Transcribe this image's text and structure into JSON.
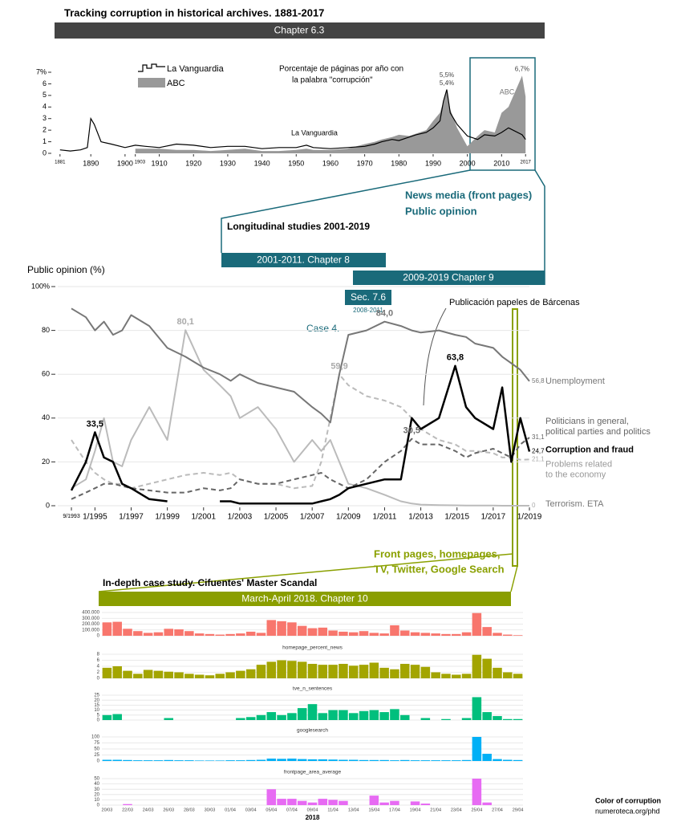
{
  "page": {
    "title": "Tracking corruption in historical archives. 1881-2017",
    "chapter_6_3": "Chapter 6.3",
    "news_media": "News media (front pages)",
    "public_opinion": "Public opinion",
    "longitudinal": "Longitudinal studies 2001-2019",
    "chapter_8": "2001-2011. Chapter 8",
    "chapter_9": "2009-2019 Chapter 9",
    "sec_7_6": "Sec. 7.6",
    "sec_7_6_years": "2008-2011",
    "case_4": "Case 4.",
    "barcenas": "Publicación papeles de Bárcenas",
    "front_pages": [
      "Front pages, homepages,",
      "TV, Twitter, Google Search"
    ],
    "in_depth": "In-depth case study. Cifuentes' Master Scandal",
    "chapter_10": "March-April 2018. Chapter 10",
    "footer": [
      "Color of corruption",
      "numeroteca.org/phd"
    ]
  },
  "chart_data": [
    {
      "type": "line",
      "subtitle": [
        "Porcentaje de páginas por año con",
        "la palabra \"corrupción\""
      ],
      "x": [
        1881,
        1884,
        1887,
        1889,
        1890,
        1891,
        1893,
        1896,
        1900,
        1903,
        1906,
        1910,
        1915,
        1920,
        1925,
        1930,
        1935,
        1940,
        1945,
        1950,
        1953,
        1955,
        1960,
        1965,
        1970,
        1973,
        1975,
        1978,
        1980,
        1983,
        1985,
        1988,
        1990,
        1992,
        1993,
        1994,
        1995,
        1997,
        2000,
        2003,
        2005,
        2008,
        2010,
        2012,
        2016,
        2017
      ],
      "series": [
        {
          "name": "La Vanguardia",
          "color": "#000000",
          "style": "line",
          "values": [
            0.3,
            0.2,
            0.3,
            0.5,
            3.0,
            2.5,
            1.0,
            0.8,
            0.5,
            0.7,
            0.6,
            0.5,
            0.8,
            0.7,
            0.5,
            0.6,
            0.6,
            0.4,
            0.5,
            0.5,
            0.7,
            0.5,
            0.4,
            0.5,
            0.6,
            0.8,
            1.0,
            1.2,
            1.1,
            1.4,
            1.6,
            1.8,
            2.2,
            2.8,
            4.5,
            5.5,
            3.5,
            2.5,
            1.5,
            1.2,
            1.6,
            1.5,
            1.8,
            2.2,
            1.6,
            1.2
          ]
        },
        {
          "name": "ABC",
          "color": "#999999",
          "style": "area",
          "values": [
            null,
            null,
            null,
            null,
            null,
            null,
            null,
            null,
            null,
            0.4,
            0.4,
            0.4,
            0.3,
            0.3,
            0.2,
            0.3,
            0.4,
            0.2,
            0.2,
            0.3,
            0.4,
            0.3,
            0.3,
            0.4,
            0.8,
            1.0,
            1.2,
            1.4,
            1.6,
            1.5,
            1.7,
            2.0,
            2.8,
            3.5,
            4.5,
            5.4,
            3.8,
            2.2,
            0.6,
            1.5,
            2.0,
            1.8,
            3.5,
            4.0,
            6.7,
            4.9
          ]
        }
      ],
      "xlim": [
        1878,
        2020
      ],
      "xticks": [
        1881,
        1890,
        1900,
        1903,
        1910,
        1920,
        1930,
        1940,
        1950,
        1960,
        1970,
        1980,
        1990,
        2000,
        2010,
        2017
      ],
      "ylim": [
        0,
        7
      ],
      "yticks": [
        0,
        1,
        2,
        3,
        4,
        5,
        6,
        {
          "value": 7,
          "label": "7%"
        }
      ],
      "legend": "top-left",
      "annotations": [
        {
          "text": "5,5%",
          "x": 1994,
          "y": 5.5
        },
        {
          "text": "5,4%",
          "x": 1994,
          "y": 5.4
        },
        {
          "text": "6,7%",
          "x": 2016,
          "y": 6.7
        }
      ]
    },
    {
      "type": "line",
      "ylabel": "Public opinion (%)",
      "x": [
        1993.7,
        1994.5,
        1995,
        1995.5,
        1996,
        1996.5,
        1997,
        1998,
        1999,
        2000,
        2001,
        2001.9,
        2002.5,
        2003,
        2004,
        2005,
        2006,
        2007,
        2007.5,
        2008,
        2008.5,
        2009,
        2010,
        2011,
        2011.9,
        2012.5,
        2013,
        2014,
        2014.9,
        2015.5,
        2016,
        2017,
        2017.5,
        2018,
        2018.5,
        2019
      ],
      "series": [
        {
          "name": "Unemployment",
          "color": "#777777",
          "dash": false,
          "values": [
            90,
            86,
            80,
            84,
            78,
            80,
            87,
            82,
            72,
            68,
            63,
            60,
            57,
            60,
            56,
            54,
            52,
            45,
            42,
            38,
            60,
            78,
            80,
            84,
            82,
            80,
            79,
            80,
            78,
            77,
            74,
            72,
            68,
            65,
            62,
            56.8
          ]
        },
        {
          "name": "Politicians in general, political parties and politics",
          "color": "#666666",
          "dash": true,
          "values": [
            3,
            6,
            8,
            10,
            10,
            9,
            8,
            7,
            6,
            6,
            8,
            7,
            8,
            12,
            10,
            10,
            12,
            14,
            15,
            12,
            10,
            8,
            12,
            20,
            25,
            30.5,
            28,
            28,
            25,
            22,
            24,
            26,
            24,
            22,
            28,
            31.1
          ]
        },
        {
          "name": "Corruption and fraud",
          "color": "#000000",
          "dash": false,
          "values": [
            7,
            20,
            33.5,
            22,
            20,
            10,
            8,
            3,
            2,
            null,
            null,
            2,
            2,
            1,
            1,
            1,
            1,
            1,
            2,
            3,
            5,
            8,
            10,
            12,
            12,
            40,
            35,
            40,
            63.8,
            45,
            40,
            35,
            54,
            20,
            40,
            24.7
          ]
        },
        {
          "name": "Problems related to the economy",
          "color": "#bbbbbb",
          "dash": true,
          "values": [
            30,
            20,
            15,
            12,
            10,
            10,
            8,
            10,
            12,
            14,
            15,
            14,
            15,
            12,
            10,
            10,
            8,
            9,
            20,
            40,
            59.9,
            55,
            50,
            48,
            45,
            40,
            35,
            30,
            28,
            25,
            25,
            24,
            22,
            22,
            21,
            21.1
          ]
        },
        {
          "name": "Terrorism. ETA",
          "color": "#bbbbbb",
          "dash": false,
          "values": [
            8,
            12,
            25,
            40,
            20,
            18,
            30,
            45,
            30,
            80.1,
            62,
            55,
            50,
            40,
            45,
            35,
            20,
            30,
            25,
            30,
            20,
            10,
            8,
            5,
            2,
            1,
            0.5,
            0.3,
            0.2,
            0.1,
            0.1,
            0.1,
            0,
            0,
            0,
            0
          ]
        }
      ],
      "xlim": [
        1993.3,
        2019
      ],
      "xticks": [
        {
          "value": 1993.7,
          "label": "9/1993"
        },
        {
          "value": 1995,
          "label": "1/1995"
        },
        {
          "value": 1997,
          "label": "1/1997"
        },
        {
          "value": 1999,
          "label": "1/1999"
        },
        {
          "value": 2001,
          "label": "1/2001"
        },
        {
          "value": 2003,
          "label": "1/2003"
        },
        {
          "value": 2005,
          "label": "1/2005"
        },
        {
          "value": 2007,
          "label": "1/2007"
        },
        {
          "value": 2009,
          "label": "1/2009"
        },
        {
          "value": 2011,
          "label": "1/2011"
        },
        {
          "value": 2013,
          "label": "1/2013"
        },
        {
          "value": 2015,
          "label": "1/2015"
        },
        {
          "value": 2017,
          "label": "1/2017"
        },
        {
          "value": 2019,
          "label": "1/2019"
        }
      ],
      "ylim": [
        0,
        100
      ],
      "yticks": [
        0,
        20,
        40,
        60,
        80,
        {
          "value": 100,
          "label": "100%"
        }
      ],
      "grid": true,
      "annotations": [
        {
          "text": "33,5",
          "x": 1995,
          "y": 33.5
        },
        {
          "text": "80,1",
          "x": 2000,
          "y": 80.1
        },
        {
          "text": "59,9",
          "x": 2008.5,
          "y": 59.9
        },
        {
          "text": "84,0",
          "x": 2011,
          "y": 84
        },
        {
          "text": "30,5",
          "x": 2012.5,
          "y": 30.5
        },
        {
          "text": "63,8",
          "x": 2014.9,
          "y": 63.8
        },
        {
          "text": "56,8",
          "x": 2019,
          "y": 56.8
        },
        {
          "text": "31,1",
          "x": 2019,
          "y": 31.1
        },
        {
          "text": "24,7",
          "x": 2019,
          "y": 24.7
        },
        {
          "text": "21,1",
          "x": 2019,
          "y": 21.1
        },
        {
          "text": "0",
          "x": 2019,
          "y": 0
        }
      ]
    },
    {
      "type": "bar",
      "facets": true,
      "xlabel": "2018",
      "categories": [
        "20/03",
        null,
        "22/03",
        null,
        "24/03",
        null,
        "26/03",
        null,
        "28/03",
        null,
        "30/03",
        null,
        "01/04",
        null,
        "03/04",
        null,
        "05/04",
        null,
        "07/04",
        null,
        "09/04",
        null,
        "11/04",
        null,
        "13/04",
        null,
        "15/04",
        null,
        "17/04",
        null,
        "19/04",
        null,
        "21/04",
        null,
        "23/04",
        null,
        "25/04",
        null,
        "27/04",
        null,
        "29/04"
      ],
      "series": [
        {
          "color": "#f8766d",
          "ylim": [
            0,
            400000
          ],
          "yticks": [
            0,
            {
              "value": 100000,
              "label": "100.000"
            },
            {
              "value": 200000,
              "label": "200.000"
            },
            {
              "value": 300000,
              "label": "300.000"
            },
            {
              "value": 400000,
              "label": "400.000"
            }
          ],
          "values": [
            230000,
            240000,
            120000,
            80000,
            50000,
            60000,
            120000,
            110000,
            80000,
            40000,
            30000,
            20000,
            30000,
            40000,
            70000,
            50000,
            270000,
            250000,
            230000,
            170000,
            130000,
            140000,
            90000,
            70000,
            60000,
            80000,
            50000,
            40000,
            180000,
            90000,
            60000,
            50000,
            40000,
            30000,
            30000,
            60000,
            390000,
            150000,
            50000,
            20000,
            10000
          ]
        },
        {
          "name": "homepage_percent_news",
          "color": "#a3a500",
          "ylim": [
            0,
            8
          ],
          "yticks": [
            0,
            2,
            4,
            6,
            8
          ],
          "values": [
            3.5,
            4,
            2.5,
            1.5,
            2.8,
            2.5,
            2.2,
            2,
            1.5,
            1.2,
            1,
            1.5,
            2,
            2.5,
            3,
            4.5,
            5.5,
            6,
            5.8,
            5.5,
            4.8,
            4.5,
            4.5,
            4.8,
            4.2,
            4.5,
            5.2,
            3.5,
            3,
            4.8,
            4.5,
            3.8,
            2,
            1.5,
            1.2,
            1.5,
            7.8,
            6.5,
            3.5,
            2,
            1.5
          ]
        },
        {
          "name": "tve_n_sentences",
          "color": "#00bf7d",
          "ylim": [
            0,
            25
          ],
          "yticks": [
            0,
            5,
            10,
            15,
            20,
            25
          ],
          "values": [
            5,
            6,
            0,
            0,
            0,
            0,
            2,
            0,
            0,
            0,
            0,
            0,
            0,
            2,
            3,
            5,
            8,
            5,
            7,
            12,
            16,
            7,
            10,
            10,
            7,
            9,
            10,
            8,
            11,
            5,
            0,
            2,
            0,
            1,
            0,
            2,
            23,
            8,
            4,
            1,
            1
          ]
        },
        {
          "name": "googlesearch",
          "color": "#00b0f6",
          "ylim": [
            0,
            100
          ],
          "yticks": [
            0,
            25,
            50,
            75,
            100
          ],
          "values": [
            5,
            5,
            4,
            3,
            3,
            3,
            4,
            3,
            3,
            2,
            2,
            2,
            3,
            3,
            4,
            5,
            10,
            9,
            10,
            8,
            7,
            7,
            6,
            5,
            5,
            4,
            4,
            4,
            3,
            4,
            3,
            3,
            3,
            3,
            3,
            4,
            100,
            30,
            8,
            5,
            4
          ]
        },
        {
          "name": "frontpage_area_average",
          "color": "#e76bf3",
          "ylim": [
            0,
            50
          ],
          "yticks": [
            0,
            10,
            20,
            30,
            40,
            50
          ],
          "values": [
            0,
            0,
            2,
            0,
            0,
            0,
            0,
            0,
            0,
            0,
            0,
            0,
            0,
            0,
            0,
            0,
            30,
            12,
            12,
            8,
            5,
            12,
            10,
            8,
            0,
            0,
            18,
            5,
            8,
            0,
            7,
            3,
            0,
            0,
            0,
            0,
            50,
            5,
            0,
            0,
            0
          ]
        }
      ]
    }
  ]
}
